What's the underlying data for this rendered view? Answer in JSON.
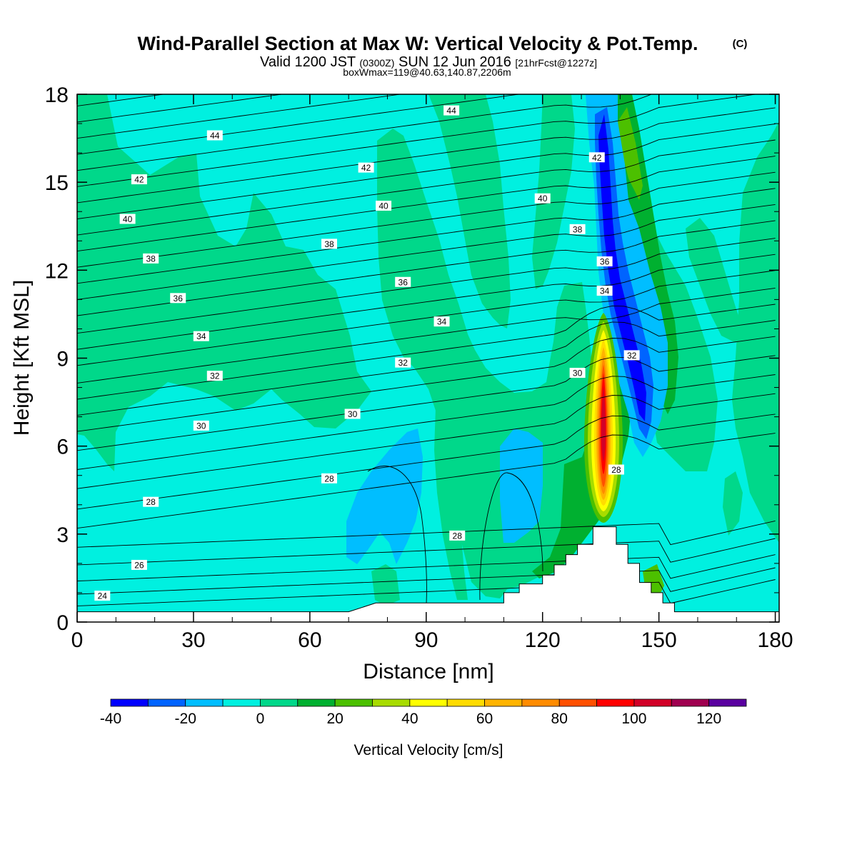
{
  "title": {
    "main": "Wind-Parallel Section at Max W: Vertical Velocity & Pot.Temp.",
    "copyright": "(C)",
    "valid_prefix": "Valid 1200 JST",
    "valid_utc": "(0300Z)",
    "valid_date": "SUN 12 Jun 2016",
    "fcst": "[21hrFcst@1227z]",
    "boxline": "boxWmax=119@40.63,140.87,2206m"
  },
  "chart_data": {
    "type": "heatmap",
    "xlabel": "Distance [nm]",
    "ylabel": "Height [Kft MSL]",
    "xlim": [
      0,
      181
    ],
    "ylim": [
      0,
      18
    ],
    "x_ticks": [
      0,
      30,
      60,
      90,
      120,
      150,
      180
    ],
    "y_ticks": [
      0,
      3,
      6,
      9,
      12,
      15,
      18
    ],
    "colorbar": {
      "label": "Vertical Velocity [cm/s]",
      "boundaries": [
        -40,
        -30,
        -20,
        -10,
        0,
        10,
        20,
        30,
        40,
        50,
        60,
        70,
        80,
        90,
        100,
        110,
        120,
        130
      ],
      "tick_labels": [
        "-40",
        "-20",
        "0",
        "20",
        "40",
        "60",
        "80",
        "100",
        "120"
      ],
      "colors": [
        "#0000ff",
        "#0064ff",
        "#00beff",
        "#00f0e0",
        "#00d88a",
        "#00b030",
        "#4cc000",
        "#a8dc00",
        "#ffff00",
        "#ffdc00",
        "#ffb400",
        "#ff8c00",
        "#ff5000",
        "#ff0000",
        "#d20028",
        "#a00050",
        "#5a00a0"
      ]
    },
    "theta_levels_K": [
      24,
      26,
      28,
      30,
      32,
      34,
      36,
      38,
      40,
      42,
      44
    ],
    "contour_labels": [
      {
        "text": "24",
        "x": 6.5,
        "y": 0.9
      },
      {
        "text": "26",
        "x": 16,
        "y": 1.95
      },
      {
        "text": "28",
        "x": 19,
        "y": 4.1
      },
      {
        "text": "30",
        "x": 32,
        "y": 6.7
      },
      {
        "text": "32",
        "x": 35.5,
        "y": 8.4
      },
      {
        "text": "34",
        "x": 32,
        "y": 9.75
      },
      {
        "text": "36",
        "x": 26,
        "y": 11.05
      },
      {
        "text": "38",
        "x": 19,
        "y": 12.4
      },
      {
        "text": "40",
        "x": 13,
        "y": 13.75
      },
      {
        "text": "42",
        "x": 16,
        "y": 15.1
      },
      {
        "text": "44",
        "x": 35.5,
        "y": 16.6
      },
      {
        "text": "44",
        "x": 96.5,
        "y": 17.45
      },
      {
        "text": "42",
        "x": 74.5,
        "y": 15.5
      },
      {
        "text": "40",
        "x": 79,
        "y": 14.2
      },
      {
        "text": "38",
        "x": 65,
        "y": 12.9
      },
      {
        "text": "36",
        "x": 84,
        "y": 11.6
      },
      {
        "text": "34",
        "x": 94,
        "y": 10.25
      },
      {
        "text": "32",
        "x": 84,
        "y": 8.85
      },
      {
        "text": "30",
        "x": 71,
        "y": 7.1
      },
      {
        "text": "28",
        "x": 65,
        "y": 4.9
      },
      {
        "text": "28",
        "x": 98,
        "y": 2.95
      },
      {
        "text": "40",
        "x": 120,
        "y": 14.45
      },
      {
        "text": "38",
        "x": 129,
        "y": 13.4
      },
      {
        "text": "42",
        "x": 134,
        "y": 15.85
      },
      {
        "text": "36",
        "x": 136,
        "y": 12.3
      },
      {
        "text": "34",
        "x": 136,
        "y": 11.3
      },
      {
        "text": "32",
        "x": 143,
        "y": 9.1
      },
      {
        "text": "30",
        "x": 129,
        "y": 8.5
      },
      {
        "text": "28",
        "x": 139,
        "y": 5.2
      }
    ],
    "terrain_steps": [
      [
        0,
        0.35
      ],
      [
        70,
        0.35
      ],
      [
        77,
        0.65
      ],
      [
        110,
        0.65
      ],
      [
        110,
        1.0
      ],
      [
        114,
        1.0
      ],
      [
        114,
        1.3
      ],
      [
        120,
        1.3
      ],
      [
        120,
        1.6
      ],
      [
        123,
        1.6
      ],
      [
        123,
        1.95
      ],
      [
        126,
        1.95
      ],
      [
        126,
        2.3
      ],
      [
        129,
        2.3
      ],
      [
        129,
        2.65
      ],
      [
        133,
        2.65
      ],
      [
        133,
        3.25
      ],
      [
        139,
        3.25
      ],
      [
        139,
        2.65
      ],
      [
        142,
        2.65
      ],
      [
        142,
        2.0
      ],
      [
        145,
        2.0
      ],
      [
        145,
        1.35
      ],
      [
        148,
        1.35
      ],
      [
        148,
        1.0
      ],
      [
        151,
        1.0
      ],
      [
        151,
        0.65
      ],
      [
        154,
        0.65
      ],
      [
        154,
        0.35
      ],
      [
        181,
        0.35
      ]
    ],
    "w_max_cm_s": 119
  }
}
